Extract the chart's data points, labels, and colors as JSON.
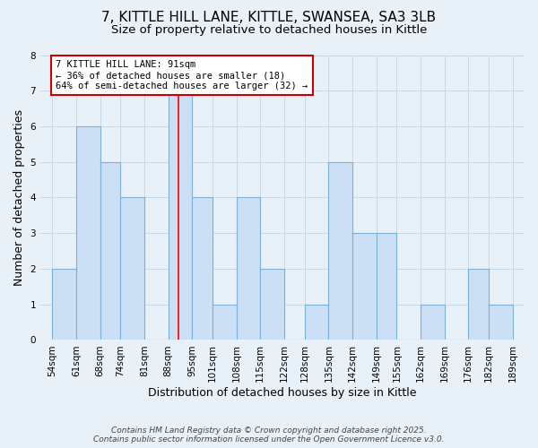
{
  "title": "7, KITTLE HILL LANE, KITTLE, SWANSEA, SA3 3LB",
  "subtitle": "Size of property relative to detached houses in Kittle",
  "xlabel": "Distribution of detached houses by size in Kittle",
  "ylabel": "Number of detached properties",
  "bin_edges": [
    54,
    61,
    68,
    74,
    81,
    88,
    95,
    101,
    108,
    115,
    122,
    128,
    135,
    142,
    149,
    155,
    162,
    169,
    176,
    182,
    189
  ],
  "bin_labels": [
    "54sqm",
    "61sqm",
    "68sqm",
    "74sqm",
    "81sqm",
    "88sqm",
    "95sqm",
    "101sqm",
    "108sqm",
    "115sqm",
    "122sqm",
    "128sqm",
    "135sqm",
    "142sqm",
    "149sqm",
    "155sqm",
    "162sqm",
    "169sqm",
    "176sqm",
    "182sqm",
    "189sqm"
  ],
  "counts": [
    2,
    6,
    5,
    4,
    0,
    7,
    4,
    1,
    4,
    2,
    0,
    1,
    5,
    3,
    3,
    0,
    1,
    0,
    2,
    1
  ],
  "bar_color": "#cce0f5",
  "bar_edge_color": "#7bafd4",
  "bar_edge_width": 0.8,
  "red_line_x": 91,
  "ylim": [
    0,
    8
  ],
  "yticks": [
    0,
    1,
    2,
    3,
    4,
    5,
    6,
    7,
    8
  ],
  "annotation_title": "7 KITTLE HILL LANE: 91sqm",
  "annotation_line1": "← 36% of detached houses are smaller (18)",
  "annotation_line2": "64% of semi-detached houses are larger (32) →",
  "annotation_box_color": "#ffffff",
  "annotation_box_edge_color": "#cc0000",
  "grid_color": "#c8d8e8",
  "background_color": "#e8f0f8",
  "footer_line1": "Contains HM Land Registry data © Crown copyright and database right 2025.",
  "footer_line2": "Contains public sector information licensed under the Open Government Licence v3.0.",
  "title_fontsize": 11,
  "subtitle_fontsize": 9.5,
  "label_fontsize": 9,
  "tick_fontsize": 7.5,
  "annot_fontsize": 7.5,
  "footer_fontsize": 6.5
}
